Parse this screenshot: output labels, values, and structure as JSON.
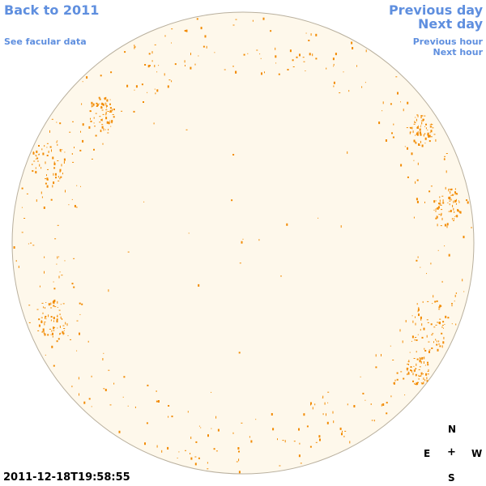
{
  "nav": {
    "back_label": "Back to 2011",
    "facular_label": "See facular data",
    "prev_day_label": "Previous day",
    "next_day_label": "Next day",
    "prev_hour_label": "Previous hour",
    "next_hour_label": "Next hour"
  },
  "timestamp": "2011-12-18T19:58:55",
  "compass": {
    "north": "N",
    "east": "E",
    "center": "+",
    "west": "W",
    "south": "S"
  },
  "colors": {
    "link": "#5f8fdf",
    "disk_fill": "#fef8eb",
    "disk_edge": "#b9b09e",
    "facula": "#f28a00"
  }
}
